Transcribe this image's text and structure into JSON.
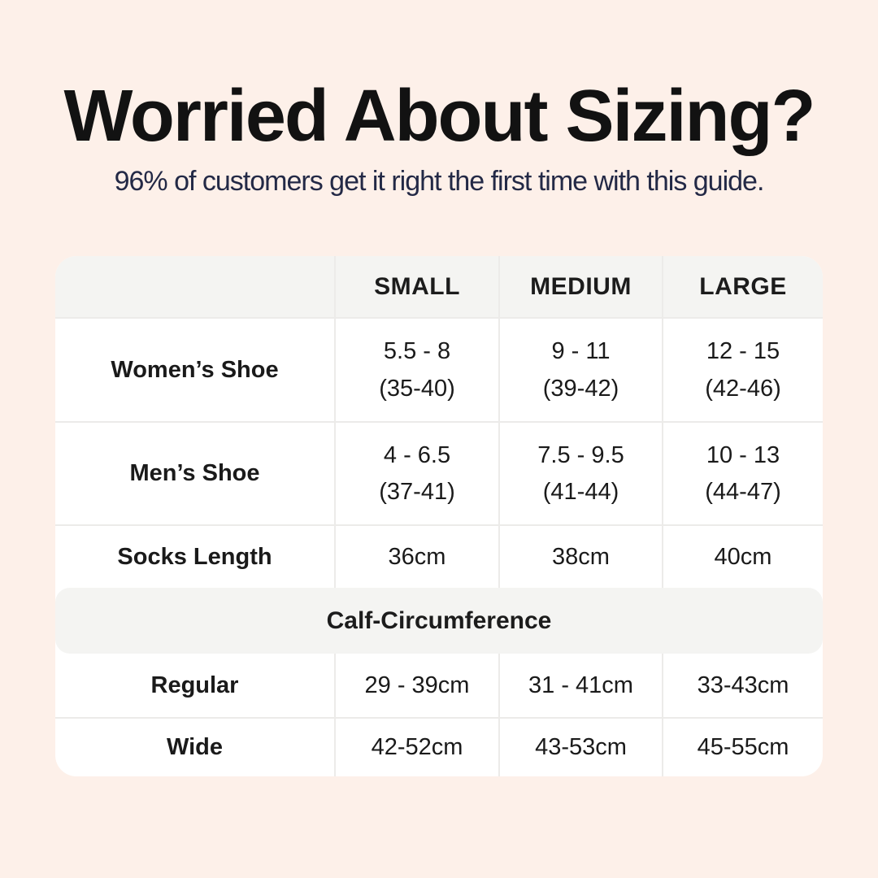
{
  "colors": {
    "page_background": "#fdf0e9",
    "card_background": "#ffffff",
    "header_band_gray": "#f4f4f2",
    "divider": "#ecebe9",
    "title_text": "#121212",
    "subtitle_text": "#232946",
    "table_text": "#1a1a1a"
  },
  "chart_data": {
    "type": "table",
    "title": "Worried About Sizing?",
    "subtitle": "96% of customers get it right the first time with this guide.",
    "columns": [
      "",
      "SMALL",
      "MEDIUM",
      "LARGE"
    ],
    "rows": [
      {
        "label": "Women’s Shoe",
        "cells": [
          {
            "main": "5.5 - 8",
            "sub": "(35-40)"
          },
          {
            "main": "9 - 11",
            "sub": "(39-42)"
          },
          {
            "main": "12 - 15",
            "sub": "(42-46)"
          }
        ]
      },
      {
        "label": "Men’s Shoe",
        "cells": [
          {
            "main": "4 - 6.5",
            "sub": "(37-41)"
          },
          {
            "main": "7.5 - 9.5",
            "sub": "(41-44)"
          },
          {
            "main": "10 - 13",
            "sub": "(44-47)"
          }
        ]
      },
      {
        "label": "Socks Length",
        "cells": [
          {
            "main": "36cm"
          },
          {
            "main": "38cm"
          },
          {
            "main": "40cm"
          }
        ]
      },
      {
        "label": "Regular",
        "cells": [
          {
            "main": "29 - 39cm"
          },
          {
            "main": "31 - 41cm"
          },
          {
            "main": "33-43cm"
          }
        ]
      },
      {
        "label": "Wide",
        "cells": [
          {
            "main": "42-52cm"
          },
          {
            "main": "43-53cm"
          },
          {
            "main": "45-55cm"
          }
        ]
      }
    ],
    "section_header": "Calf-Circumference",
    "layout_note": "section header band spans all columns between Socks Length row and Regular row"
  }
}
